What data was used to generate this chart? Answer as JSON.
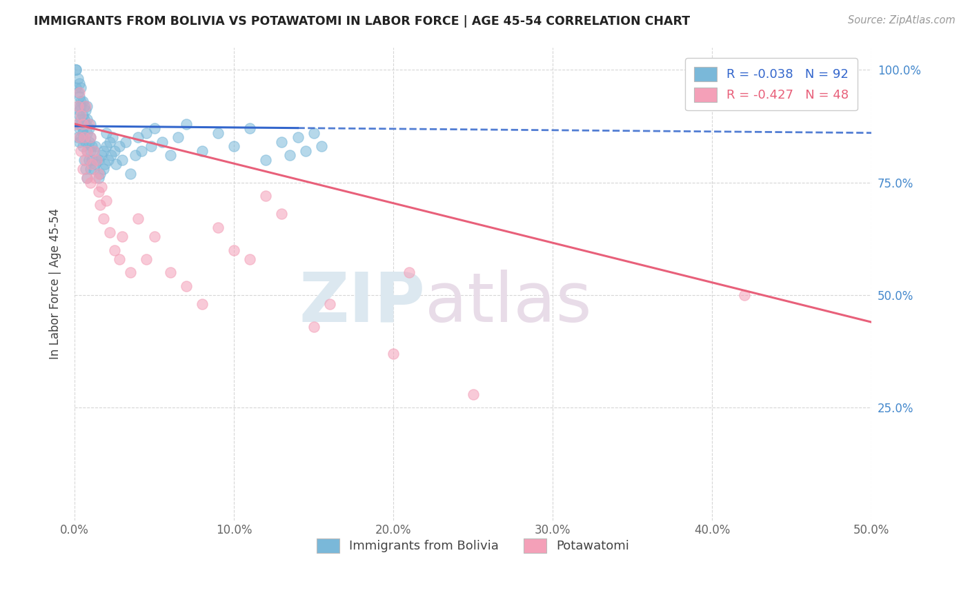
{
  "title": "IMMIGRANTS FROM BOLIVIA VS POTAWATOMI IN LABOR FORCE | AGE 45-54 CORRELATION CHART",
  "source": "Source: ZipAtlas.com",
  "ylabel_label": "In Labor Force | Age 45-54",
  "xlim": [
    0.0,
    0.5
  ],
  "ylim": [
    0.0,
    1.05
  ],
  "xtick_vals": [
    0.0,
    0.1,
    0.2,
    0.3,
    0.4,
    0.5
  ],
  "xtick_labels": [
    "0.0%",
    "10.0%",
    "20.0%",
    "30.0%",
    "40.0%",
    "50.0%"
  ],
  "ytick_vals": [
    0.25,
    0.5,
    0.75,
    1.0
  ],
  "ytick_labels_right": [
    "25.0%",
    "50.0%",
    "75.0%",
    "100.0%"
  ],
  "blue_R": -0.038,
  "blue_N": 92,
  "pink_R": -0.427,
  "pink_N": 48,
  "blue_color": "#7ab8d9",
  "pink_color": "#f4a0b8",
  "blue_line_color": "#3366cc",
  "pink_line_color": "#e8607a",
  "blue_legend_label": "Immigrants from Bolivia",
  "pink_legend_label": "Potawatomi",
  "background_color": "#ffffff",
  "grid_color": "#cccccc",
  "right_axis_color": "#4488cc",
  "blue_x": [
    0.001,
    0.001,
    0.001,
    0.002,
    0.002,
    0.002,
    0.002,
    0.002,
    0.003,
    0.003,
    0.003,
    0.003,
    0.003,
    0.003,
    0.004,
    0.004,
    0.004,
    0.004,
    0.004,
    0.004,
    0.005,
    0.005,
    0.005,
    0.005,
    0.005,
    0.006,
    0.006,
    0.006,
    0.006,
    0.007,
    0.007,
    0.007,
    0.007,
    0.008,
    0.008,
    0.008,
    0.008,
    0.008,
    0.009,
    0.009,
    0.009,
    0.01,
    0.01,
    0.01,
    0.01,
    0.011,
    0.011,
    0.012,
    0.012,
    0.013,
    0.013,
    0.014,
    0.015,
    0.015,
    0.016,
    0.017,
    0.018,
    0.018,
    0.019,
    0.02,
    0.02,
    0.021,
    0.022,
    0.023,
    0.024,
    0.025,
    0.026,
    0.028,
    0.03,
    0.032,
    0.035,
    0.038,
    0.04,
    0.042,
    0.045,
    0.048,
    0.05,
    0.055,
    0.06,
    0.065,
    0.07,
    0.08,
    0.09,
    0.1,
    0.11,
    0.12,
    0.13,
    0.135,
    0.14,
    0.145,
    0.15,
    0.155
  ],
  "blue_y": [
    1.0,
    1.0,
    0.96,
    0.92,
    0.88,
    0.95,
    0.98,
    0.85,
    0.91,
    0.94,
    0.87,
    0.9,
    0.84,
    0.97,
    0.88,
    0.92,
    0.85,
    0.89,
    0.93,
    0.96,
    0.86,
    0.9,
    0.83,
    0.87,
    0.93,
    0.85,
    0.89,
    0.92,
    0.8,
    0.84,
    0.88,
    0.91,
    0.78,
    0.82,
    0.86,
    0.89,
    0.76,
    0.92,
    0.8,
    0.84,
    0.87,
    0.78,
    0.82,
    0.85,
    0.88,
    0.8,
    0.83,
    0.78,
    0.82,
    0.79,
    0.83,
    0.8,
    0.76,
    0.8,
    0.77,
    0.81,
    0.78,
    0.82,
    0.79,
    0.83,
    0.86,
    0.8,
    0.84,
    0.81,
    0.85,
    0.82,
    0.79,
    0.83,
    0.8,
    0.84,
    0.77,
    0.81,
    0.85,
    0.82,
    0.86,
    0.83,
    0.87,
    0.84,
    0.81,
    0.85,
    0.88,
    0.82,
    0.86,
    0.83,
    0.87,
    0.8,
    0.84,
    0.81,
    0.85,
    0.82,
    0.86,
    0.83
  ],
  "pink_x": [
    0.001,
    0.002,
    0.003,
    0.003,
    0.004,
    0.004,
    0.005,
    0.005,
    0.006,
    0.007,
    0.007,
    0.008,
    0.008,
    0.009,
    0.01,
    0.01,
    0.011,
    0.012,
    0.013,
    0.014,
    0.015,
    0.015,
    0.016,
    0.017,
    0.018,
    0.02,
    0.022,
    0.025,
    0.028,
    0.03,
    0.035,
    0.04,
    0.045,
    0.05,
    0.06,
    0.07,
    0.08,
    0.09,
    0.1,
    0.11,
    0.12,
    0.13,
    0.15,
    0.16,
    0.2,
    0.21,
    0.25,
    0.42
  ],
  "pink_y": [
    0.88,
    0.92,
    0.85,
    0.95,
    0.82,
    0.9,
    0.88,
    0.78,
    0.85,
    0.8,
    0.92,
    0.76,
    0.82,
    0.88,
    0.75,
    0.85,
    0.79,
    0.82,
    0.76,
    0.8,
    0.73,
    0.77,
    0.7,
    0.74,
    0.67,
    0.71,
    0.64,
    0.6,
    0.58,
    0.63,
    0.55,
    0.67,
    0.58,
    0.63,
    0.55,
    0.52,
    0.48,
    0.65,
    0.6,
    0.58,
    0.72,
    0.68,
    0.43,
    0.48,
    0.37,
    0.55,
    0.28,
    0.5
  ]
}
